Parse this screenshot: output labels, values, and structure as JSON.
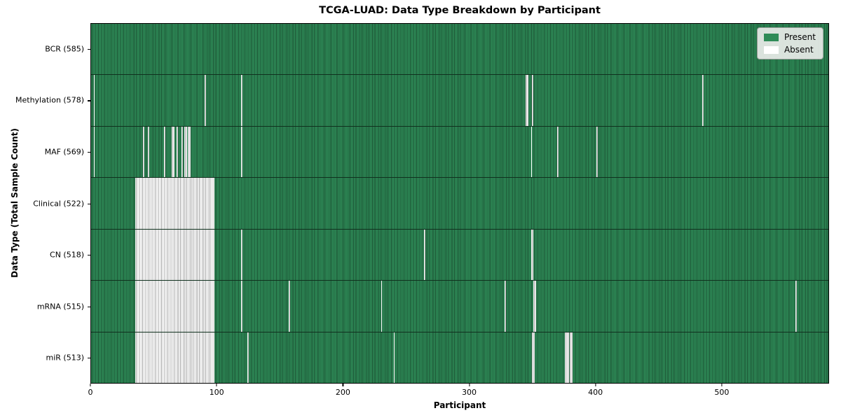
{
  "colors": {
    "present_green": "#2e8b57",
    "present_green_dark": "#1c5334",
    "absent_white": "#ffffff",
    "absent_stripe_gray": "#a8a8a8",
    "axis_black": "#000000",
    "legend_background": "#e9ece9"
  },
  "chart_data": {
    "type": "heatmap",
    "title": "TCGA-LUAD: Data Type Breakdown by Participant",
    "xlabel": "Participant",
    "ylabel": "Data Type (Total Sample Count)",
    "x_domain": [
      0,
      585
    ],
    "x_ticks": [
      0,
      100,
      200,
      300,
      400,
      500
    ],
    "total_participants": 585,
    "grid": false,
    "legend_position": "upper right",
    "legend": [
      {
        "label": "Present",
        "color": "#2e8b57"
      },
      {
        "label": "Absent",
        "color": "#ffffff"
      }
    ],
    "rows": [
      {
        "data_type": "BCR",
        "label": "BCR (585)",
        "present_count": 585,
        "absent_runs": []
      },
      {
        "data_type": "Methylation",
        "label": "Methylation (578)",
        "present_count": 578,
        "absent_runs": [
          [
            2,
            1
          ],
          [
            90,
            1
          ],
          [
            119,
            1
          ],
          [
            345,
            2
          ],
          [
            350,
            1
          ],
          [
            485,
            1
          ]
        ]
      },
      {
        "data_type": "MAF",
        "label": "MAF (569)",
        "present_count": 569,
        "absent_runs": [
          [
            2,
            1
          ],
          [
            41,
            1
          ],
          [
            45,
            1
          ],
          [
            58,
            1
          ],
          [
            64,
            2
          ],
          [
            68,
            1
          ],
          [
            72,
            1
          ],
          [
            74,
            2
          ],
          [
            77,
            2
          ],
          [
            119,
            1
          ],
          [
            349,
            1
          ],
          [
            370,
            1
          ],
          [
            401,
            1
          ]
        ]
      },
      {
        "data_type": "Clinical",
        "label": "Clinical (522)",
        "present_count": 522,
        "absent_runs": [
          [
            35,
            63
          ]
        ]
      },
      {
        "data_type": "CN",
        "label": "CN (518)",
        "present_count": 518,
        "absent_runs": [
          [
            35,
            63
          ],
          [
            119,
            1
          ],
          [
            264,
            1
          ],
          [
            349,
            2
          ]
        ]
      },
      {
        "data_type": "mRNA",
        "label": "mRNA (515)",
        "present_count": 515,
        "absent_runs": [
          [
            35,
            63
          ],
          [
            119,
            1
          ],
          [
            157,
            1
          ],
          [
            230,
            1
          ],
          [
            328,
            1
          ],
          [
            351,
            2
          ],
          [
            559,
            1
          ]
        ]
      },
      {
        "data_type": "miR",
        "label": "miR (513)",
        "present_count": 513,
        "absent_runs": [
          [
            35,
            63
          ],
          [
            124,
            1
          ],
          [
            240,
            1
          ],
          [
            350,
            2
          ],
          [
            376,
            3
          ],
          [
            380,
            2
          ]
        ]
      }
    ]
  }
}
